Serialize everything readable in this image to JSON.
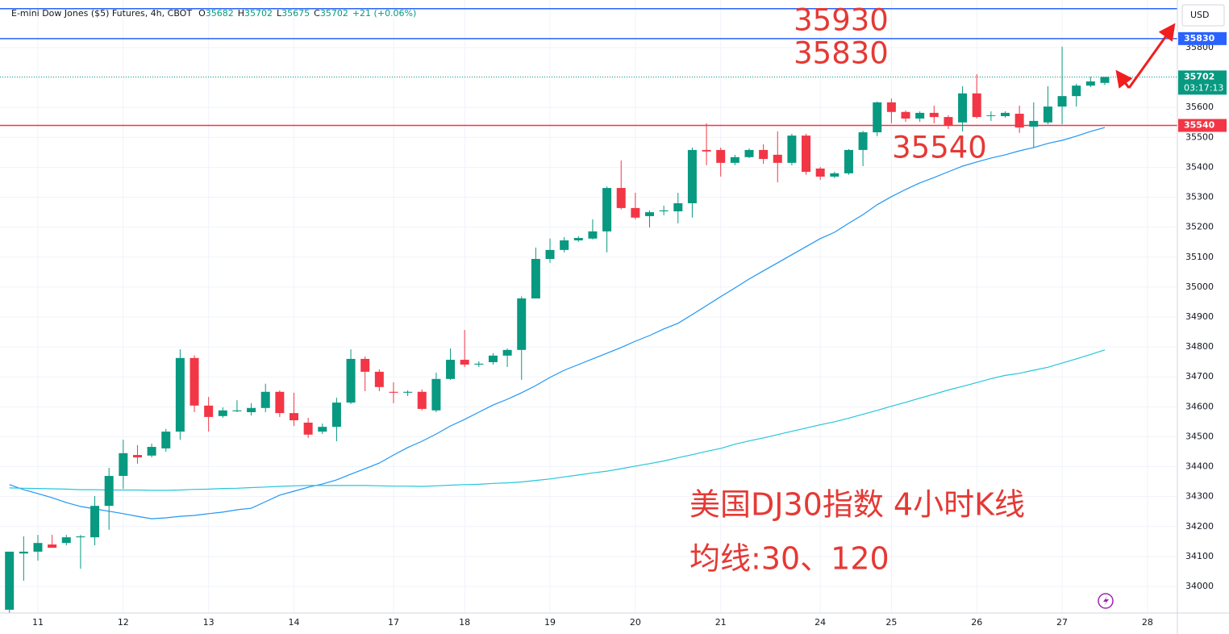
{
  "chart_data": {
    "type": "candlestick",
    "title": "E-mini Dow Jones ($5) Futures, 4h, CBOT",
    "ohlc_labels": [
      "O",
      "H",
      "L",
      "C"
    ],
    "change": "+21 (+0.06%)",
    "currency": "USD",
    "countdown": "03:17:13",
    "categories": [
      null,
      null,
      "11",
      null,
      null,
      null,
      null,
      null,
      "12",
      null,
      null,
      null,
      null,
      null,
      "13",
      null,
      null,
      null,
      null,
      null,
      "14",
      null,
      null,
      null,
      null,
      null,
      null,
      "17",
      null,
      null,
      null,
      null,
      "18",
      null,
      null,
      null,
      null,
      null,
      "19",
      null,
      null,
      null,
      null,
      null,
      "20",
      null,
      null,
      null,
      null,
      null,
      "21",
      null,
      null,
      null,
      null,
      null,
      null,
      "24",
      null,
      null,
      null,
      null,
      "25",
      null,
      null,
      null,
      null,
      null,
      "26",
      null,
      null,
      null,
      null,
      null,
      "27",
      null,
      null,
      null,
      null,
      null,
      "28"
    ],
    "open": [
      33922,
      34110,
      34116,
      34140,
      34145,
      34164,
      34164,
      34269,
      34369,
      34439,
      34437,
      34461,
      34517,
      34763,
      34604,
      34569,
      34585,
      34582,
      34596,
      34650,
      34579,
      34547,
      34517,
      34533,
      34614,
      34760,
      34717,
      34650,
      34647,
      34650,
      34588,
      34693,
      34757,
      34741,
      34749,
      34771,
      34790,
      34962,
      35094,
      35124,
      35156,
      35162,
      35186,
      35331,
      35264,
      35237,
      35253,
      35253,
      35280,
      35458,
      35458,
      35415,
      35434,
      35458,
      35442,
      35415,
      35506,
      35396,
      35369,
      35380,
      35458,
      35517,
      35617,
      35585,
      35563,
      35582,
      35568,
      35550,
      35647,
      35574,
      35571,
      35579,
      35536,
      35550,
      35603,
      35638,
      35673,
      35682,
      null,
      null,
      null
    ],
    "high": [
      34116,
      34167,
      34172,
      34172,
      34172,
      34172,
      34302,
      34396,
      34490,
      34472,
      34477,
      34526,
      34792,
      34772,
      34633,
      34598,
      34622,
      34612,
      34677,
      34655,
      34647,
      34563,
      34544,
      34630,
      34792,
      34768,
      34725,
      34682,
      34655,
      34658,
      34714,
      34795,
      34857,
      34752,
      34779,
      34795,
      34969,
      35132,
      35162,
      35167,
      35170,
      35226,
      35336,
      35423,
      35315,
      35256,
      35272,
      35315,
      35466,
      35547,
      35466,
      35442,
      35463,
      35477,
      35520,
      35512,
      35512,
      35401,
      35385,
      35461,
      35522,
      35620,
      35630,
      35590,
      35587,
      35606,
      35574,
      35671,
      35711,
      35587,
      35587,
      35606,
      35617,
      35671,
      35803,
      35679,
      35703,
      35702,
      null,
      null,
      null
    ],
    "low": [
      33911,
      34019,
      34086,
      34129,
      34137,
      34059,
      34137,
      34189,
      34326,
      34410,
      34431,
      34450,
      34490,
      34582,
      34517,
      34563,
      34582,
      34571,
      34582,
      34566,
      34536,
      34496,
      34509,
      34485,
      34609,
      34652,
      34652,
      34612,
      34636,
      34588,
      34582,
      34690,
      34733,
      34733,
      34741,
      34733,
      34690,
      34962,
      35081,
      35116,
      35151,
      35159,
      35116,
      35259,
      35226,
      35199,
      35240,
      35213,
      35232,
      35407,
      35369,
      35407,
      35431,
      35412,
      35350,
      35407,
      35375,
      35358,
      35364,
      35375,
      35404,
      35504,
      35547,
      35552,
      35552,
      35547,
      35528,
      35520,
      35563,
      35555,
      35566,
      35515,
      35466,
      35544,
      35544,
      35603,
      35668,
      35675,
      null,
      null,
      null
    ],
    "close": [
      34116,
      34116,
      34145,
      34129,
      34164,
      34167,
      34269,
      34369,
      34445,
      34431,
      34466,
      34517,
      34763,
      34604,
      34566,
      34588,
      34588,
      34596,
      34650,
      34579,
      34555,
      34507,
      34533,
      34614,
      34760,
      34717,
      34666,
      34647,
      34650,
      34593,
      34693,
      34757,
      34741,
      34744,
      34771,
      34790,
      34962,
      35094,
      35124,
      35156,
      35164,
      35186,
      35331,
      35264,
      35232,
      35250,
      35256,
      35280,
      35458,
      35453,
      35415,
      35434,
      35458,
      35428,
      35415,
      35506,
      35385,
      35369,
      35380,
      35458,
      35517,
      35617,
      35585,
      35563,
      35582,
      35568,
      35539,
      35647,
      35568,
      35574,
      35582,
      35533,
      35555,
      35603,
      35638,
      35673,
      35687,
      35702,
      null,
      null,
      null
    ],
    "up_color": "#089981",
    "down_color": "#f23645",
    "lines": [
      {
        "color": "#2196f3",
        "values": [
          34340,
          34323,
          34310,
          34296,
          34280,
          34267,
          34259,
          34251,
          34243,
          34234,
          34226,
          34229,
          34234,
          34237,
          34243,
          34248,
          34256,
          34261,
          34283,
          34305,
          34318,
          34331,
          34342,
          34356,
          34375,
          34393,
          34412,
          34439,
          34464,
          34485,
          34509,
          34536,
          34558,
          34582,
          34606,
          34625,
          34647,
          34671,
          34698,
          34722,
          34741,
          34760,
          34779,
          34798,
          34819,
          34838,
          34860,
          34879,
          34908,
          34938,
          34968,
          34997,
          35027,
          35054,
          35081,
          35108,
          35135,
          35162,
          35183,
          35213,
          35242,
          35275,
          35302,
          35326,
          35348,
          35366,
          35385,
          35404,
          35418,
          35431,
          35442,
          35455,
          35466,
          35480,
          35490,
          35504,
          35520,
          35533,
          null,
          null,
          null
        ]
      },
      {
        "color": "#26c6da",
        "values": [
          34329,
          34328,
          34327,
          34326,
          34325,
          34323,
          34323,
          34322,
          34322,
          34322,
          34321,
          34321,
          34322,
          34324,
          34325,
          34327,
          34328,
          34330,
          34332,
          34334,
          34336,
          34337,
          34337,
          34337,
          34337,
          34337,
          34336,
          34335,
          34335,
          34334,
          34336,
          34338,
          34340,
          34341,
          34344,
          34346,
          34349,
          34354,
          34359,
          34366,
          34372,
          34379,
          34385,
          34393,
          34402,
          34410,
          34419,
          34430,
          34440,
          34451,
          34461,
          34475,
          34486,
          34496,
          34507,
          34518,
          34529,
          34540,
          34550,
          34562,
          34575,
          34588,
          34602,
          34615,
          34629,
          34642,
          34656,
          34668,
          34681,
          34694,
          34705,
          34712,
          34722,
          34732,
          34746,
          34760,
          34775,
          34790,
          null,
          null,
          null
        ]
      }
    ],
    "price_levels": [
      {
        "value": 35930,
        "color": "#2962ff",
        "axis_label": false
      },
      {
        "value": 35830,
        "color": "#2962ff",
        "axis_label": true
      },
      {
        "value": 35540,
        "color": "#f23645",
        "axis_label": true
      }
    ],
    "annotation_color": "#e53935",
    "notes": [
      "美国DJ30指数 4小时K线",
      "均线:30、120"
    ],
    "ylim": [
      33911,
      35959
    ],
    "yticks": [
      34000,
      34100,
      34200,
      34300,
      34400,
      34500,
      34600,
      34700,
      34800,
      34900,
      35000,
      35100,
      35200,
      35300,
      35400,
      35500,
      35600,
      35700,
      35800
    ],
    "grid": true
  }
}
